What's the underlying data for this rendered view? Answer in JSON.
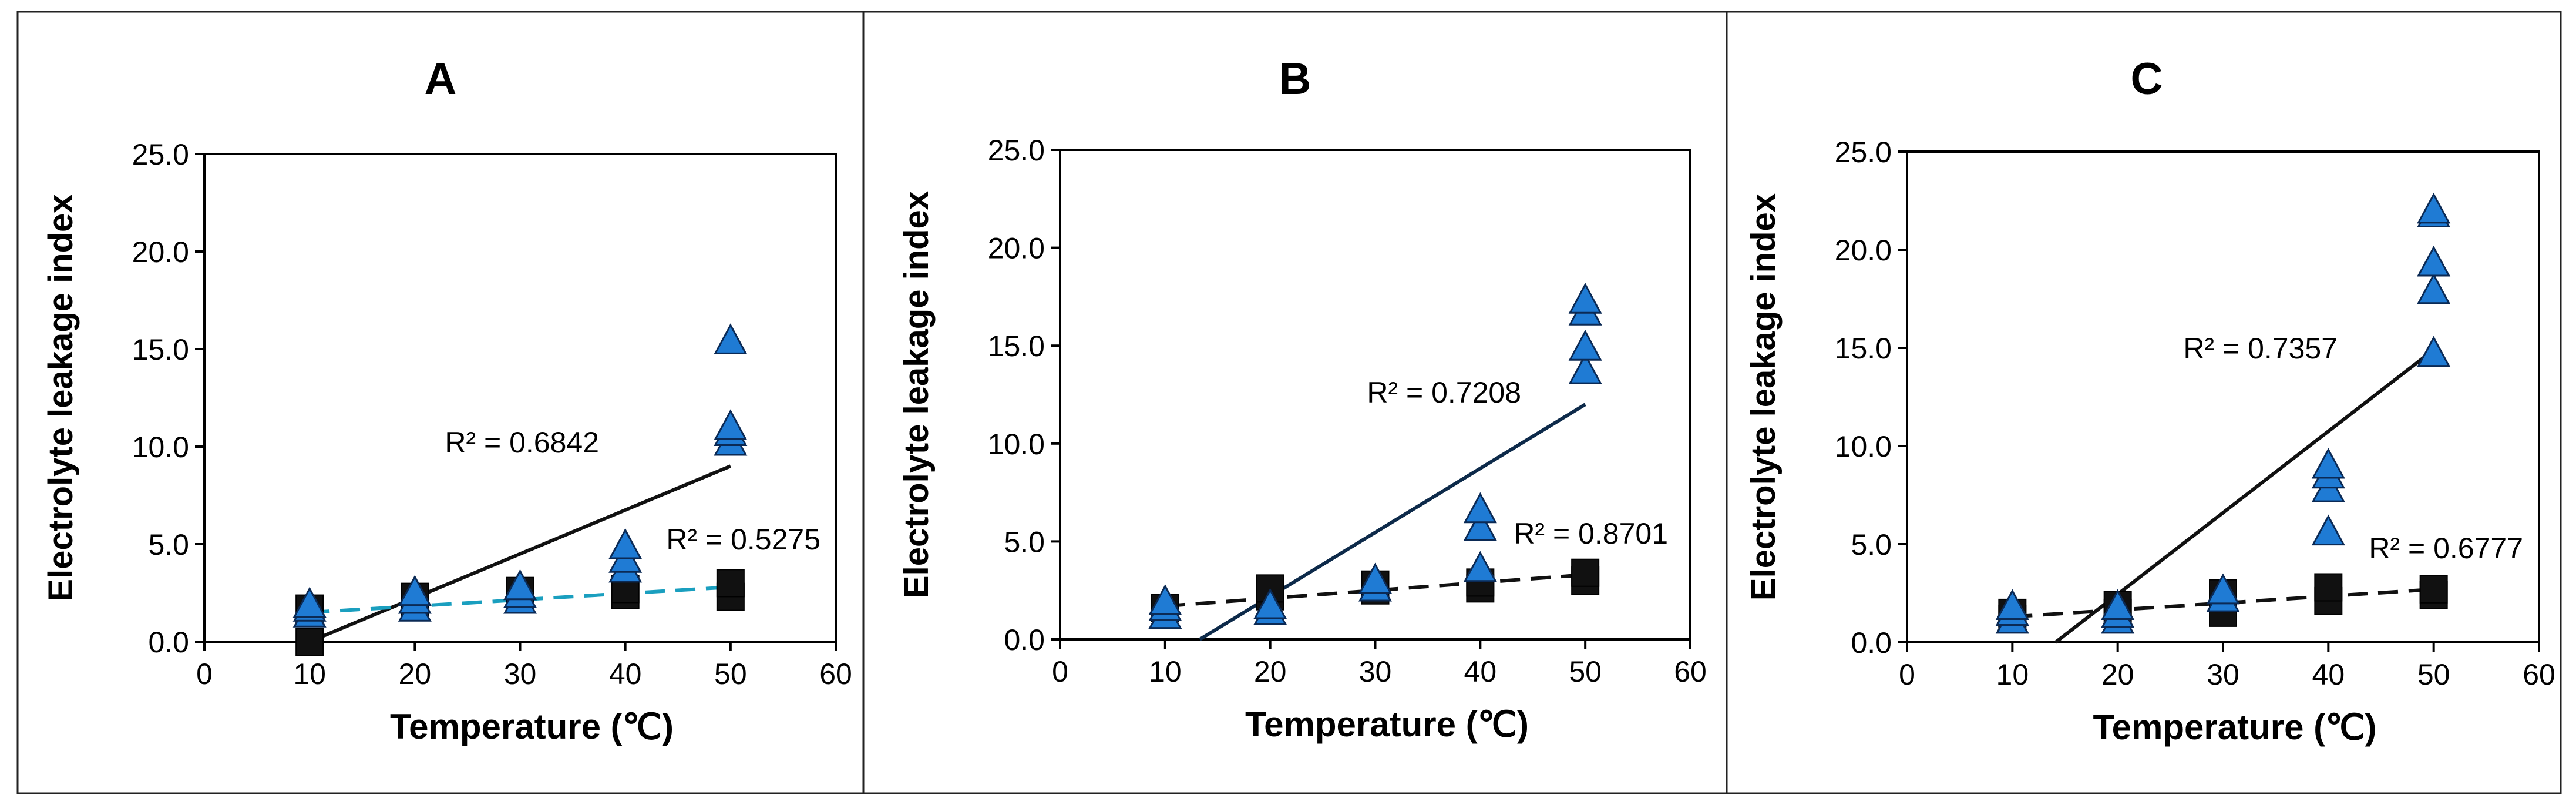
{
  "chart_data": [
    {
      "type": "scatter",
      "title": "A",
      "xlabel": "Temperature (℃)",
      "ylabel": "Electrolyte leakage index",
      "xlim": [
        0,
        60
      ],
      "ylim": [
        0,
        25
      ],
      "xticks": [
        "0",
        "10",
        "20",
        "30",
        "40",
        "50",
        "60"
      ],
      "yticks": [
        "0.0",
        "5.0",
        "10.0",
        "15.0",
        "20.0",
        "25.0"
      ],
      "series": [
        {
          "name": "triangle",
          "marker": "triangle",
          "color": "#1f7bd4",
          "points": [
            [
              10,
              1.5
            ],
            [
              10,
              1.8
            ],
            [
              10,
              2.0
            ],
            [
              20,
              1.8
            ],
            [
              20,
              2.2
            ],
            [
              20,
              2.6
            ],
            [
              30,
              2.2
            ],
            [
              30,
              2.5
            ],
            [
              30,
              2.9
            ],
            [
              40,
              3.8
            ],
            [
              40,
              4.3
            ],
            [
              40,
              5.0
            ],
            [
              50,
              10.3
            ],
            [
              50,
              10.8
            ],
            [
              50,
              11.1
            ],
            [
              50,
              15.5
            ]
          ],
          "trend": {
            "x": [
              10,
              50
            ],
            "y": [
              0.0,
              9.0
            ],
            "style": "solid",
            "color": "#111111"
          },
          "r2": "R² = 0.6842"
        },
        {
          "name": "square",
          "marker": "square",
          "color": "#111111",
          "points": [
            [
              10,
              0.0
            ],
            [
              10,
              1.7
            ],
            [
              20,
              2.0
            ],
            [
              20,
              2.3
            ],
            [
              30,
              2.2
            ],
            [
              30,
              2.6
            ],
            [
              40,
              2.4
            ],
            [
              40,
              2.7
            ],
            [
              50,
              2.3
            ],
            [
              50,
              3.0
            ]
          ],
          "trend": {
            "x": [
              10,
              50
            ],
            "y": [
              1.5,
              2.8
            ],
            "style": "dashed",
            "color": "#1a9fbf"
          },
          "r2": "R² = 0.5275"
        }
      ]
    },
    {
      "type": "scatter",
      "title": "B",
      "xlabel": "Temperature (℃)",
      "ylabel": "Electrolyte leakage index",
      "xlim": [
        0,
        60
      ],
      "ylim": [
        0,
        25
      ],
      "xticks": [
        "0",
        "10",
        "20",
        "30",
        "40",
        "50",
        "60"
      ],
      "yticks": [
        "0.0",
        "5.0",
        "10.0",
        "15.0",
        "20.0",
        "25.0"
      ],
      "series": [
        {
          "name": "triangle",
          "marker": "triangle",
          "color": "#1f7bd4",
          "points": [
            [
              10,
              1.3
            ],
            [
              10,
              1.7
            ],
            [
              10,
              2.0
            ],
            [
              20,
              1.5
            ],
            [
              20,
              1.8
            ],
            [
              30,
              2.7
            ],
            [
              30,
              3.1
            ],
            [
              40,
              3.7
            ],
            [
              40,
              5.8
            ],
            [
              40,
              6.7
            ],
            [
              50,
              13.8
            ],
            [
              50,
              15.0
            ],
            [
              50,
              16.8
            ],
            [
              50,
              17.4
            ]
          ],
          "trend": {
            "x": [
              13.3,
              50
            ],
            "y": [
              0.0,
              12.0
            ],
            "style": "solid",
            "color": "#0d2a4a"
          },
          "r2": "R² = 0.7208"
        },
        {
          "name": "square",
          "marker": "square",
          "color": "#111111",
          "points": [
            [
              10,
              1.6
            ],
            [
              20,
              2.2
            ],
            [
              20,
              2.6
            ],
            [
              30,
              2.5
            ],
            [
              30,
              2.8
            ],
            [
              40,
              2.6
            ],
            [
              40,
              2.9
            ],
            [
              50,
              3.0
            ],
            [
              50,
              3.4
            ]
          ],
          "trend": {
            "x": [
              10,
              50
            ],
            "y": [
              1.7,
              3.3
            ],
            "style": "dashed",
            "color": "#111111"
          },
          "r2": "R² = 0.8701"
        }
      ]
    },
    {
      "type": "scatter",
      "title": "C",
      "xlabel": "Temperature (℃)",
      "ylabel": "Electrolyte leakage index",
      "xlim": [
        0,
        60
      ],
      "ylim": [
        0,
        25
      ],
      "xticks": [
        "0",
        "10",
        "20",
        "30",
        "40",
        "50",
        "60"
      ],
      "yticks": [
        "0.0",
        "5.0",
        "10.0",
        "15.0",
        "20.0",
        "25.0"
      ],
      "series": [
        {
          "name": "triangle",
          "marker": "triangle",
          "color": "#1f7bd4",
          "points": [
            [
              10,
              1.2
            ],
            [
              10,
              1.6
            ],
            [
              10,
              1.9
            ],
            [
              20,
              1.2
            ],
            [
              20,
              1.5
            ],
            [
              20,
              1.9
            ],
            [
              30,
              2.3
            ],
            [
              30,
              2.7
            ],
            [
              40,
              5.7
            ],
            [
              40,
              7.9
            ],
            [
              40,
              8.6
            ],
            [
              40,
              9.1
            ],
            [
              50,
              14.8
            ],
            [
              50,
              18.0
            ],
            [
              50,
              19.4
            ],
            [
              50,
              21.9
            ],
            [
              50,
              22.1
            ]
          ],
          "trend": {
            "x": [
              14.1,
              50
            ],
            "y": [
              0.0,
              14.9
            ],
            "style": "solid",
            "color": "#111111"
          },
          "r2": "R² = 0.7357"
        },
        {
          "name": "square",
          "marker": "square",
          "color": "#111111",
          "points": [
            [
              10,
              1.2
            ],
            [
              10,
              1.5
            ],
            [
              20,
              1.5
            ],
            [
              20,
              1.9
            ],
            [
              30,
              1.5
            ],
            [
              30,
              2.5
            ],
            [
              40,
              2.1
            ],
            [
              40,
              2.8
            ],
            [
              50,
              2.4
            ],
            [
              50,
              2.7
            ]
          ],
          "trend": {
            "x": [
              10,
              50
            ],
            "y": [
              1.3,
              2.7
            ],
            "style": "dashed",
            "color": "#111111"
          },
          "r2": "R² = 0.6777"
        }
      ]
    }
  ]
}
